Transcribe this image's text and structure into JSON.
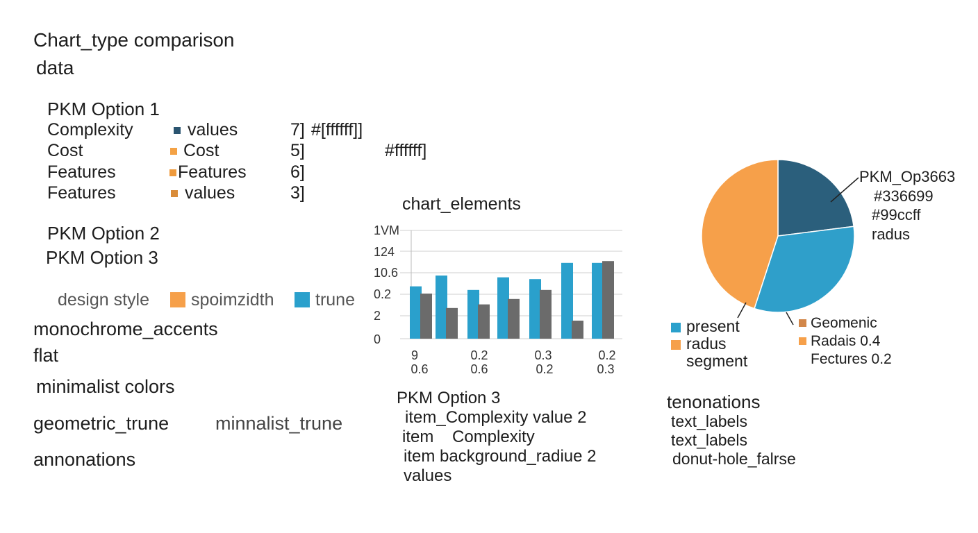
{
  "header": {
    "title": "Chart_type  comparison",
    "subtitle": "data"
  },
  "option1": {
    "heading": "PKM Option 1",
    "rows": [
      {
        "label": "Complexity",
        "legend": "values",
        "value": "7]",
        "extra": "#[ffffff]]",
        "swatch": "#2a5470"
      },
      {
        "label": "Cost",
        "legend": "Cost",
        "value": "5]",
        "extra": "#ffffff]",
        "swatch": "#f4a245"
      },
      {
        "label": "Features",
        "legend": "Features",
        "value": "6]",
        "extra": "",
        "swatch": "#ef9a3c"
      },
      {
        "label": "Features",
        "legend": "values",
        "value": "3]",
        "extra": "",
        "swatch": "#d98c3a"
      }
    ]
  },
  "option2_label": "PKM Option 2",
  "option3_label": "PKM Option 3",
  "design": {
    "label": "design style",
    "items": [
      {
        "text": "spoimzidth",
        "color": "#f6a04a"
      },
      {
        "text": "trune",
        "color": "#2aa0cc"
      }
    ]
  },
  "styles": {
    "monochrome": "monochrome_accents",
    "flat": "flat",
    "minimalist": "minimalist colors",
    "geometric": "geometric_trune",
    "minlist": "minnalist_trune",
    "annonations": "annonations"
  },
  "bar_block": {
    "title": "chart_elements",
    "x_row1": [
      "9",
      "0.2",
      "0.3",
      "0.2"
    ],
    "x_row2": [
      "0.6",
      "0.6",
      "0.2",
      "0.3"
    ],
    "option3": {
      "heading": "PKM Option 3",
      "items": [
        "item_Complexity value 2",
        "item    Complexity",
        "item background_radiue 2",
        "values"
      ]
    }
  },
  "pie_block": {
    "callout": [
      "PKM_Op3663",
      "#336699",
      "#99ccff",
      "radus"
    ],
    "legend_left": [
      {
        "text": "present",
        "color": "#2aa0cc"
      },
      {
        "text": "radus",
        "color": "#f6a04a"
      },
      {
        "text": "segment",
        "color": ""
      }
    ],
    "legend_right": [
      {
        "text": "Geomenic",
        "color": "#d2874a"
      },
      {
        "text": "Radais 0.4",
        "color": "#f6a04a"
      },
      {
        "text": "Fectures 0.2",
        "color": ""
      }
    ],
    "annotations": {
      "heading": "tenonations",
      "items": [
        "text_labels",
        "text_labels",
        "donut-hole_falrse"
      ]
    }
  },
  "chart_data": [
    {
      "type": "bar",
      "title": "chart_elements",
      "y_tick_labels": [
        "1VM",
        "124",
        "10.6",
        "0.2",
        "2",
        "0"
      ],
      "ylim": [
        0,
        6
      ],
      "grid": true,
      "series": [
        {
          "color": "#2aa0cc",
          "values": [
            2.9,
            3.5,
            2.7,
            3.4,
            3.3,
            4.2,
            4.2
          ]
        },
        {
          "color": "#6b6b6b",
          "values": [
            2.5,
            1.7,
            1.9,
            2.2,
            2.7,
            1.0,
            4.3
          ]
        }
      ]
    },
    {
      "type": "pie",
      "slices": [
        {
          "value": 0.23,
          "color": "#2b5f7c"
        },
        {
          "value": 0.32,
          "color": "#2f9fca"
        },
        {
          "value": 0.45,
          "color": "#f6a04a"
        }
      ],
      "donut_hole": false
    }
  ]
}
